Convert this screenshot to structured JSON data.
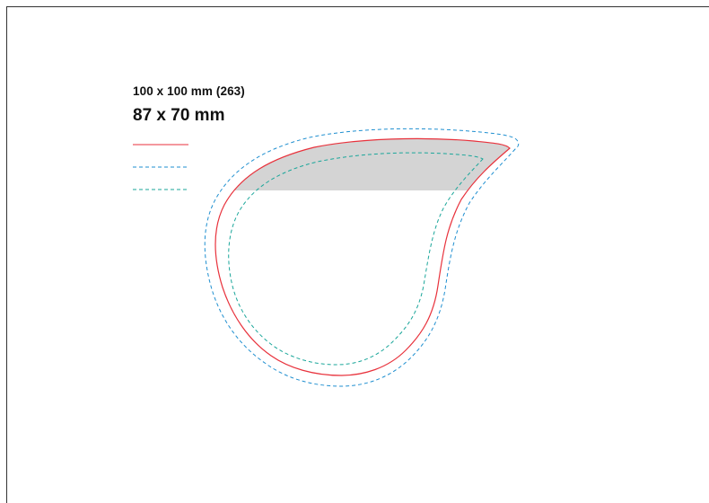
{
  "sheet": {
    "size_label": "100 x 100 mm (263)"
  },
  "shape": {
    "size_label": "87 x 70 mm",
    "type": "teardrop"
  },
  "legend": {
    "items": [
      {
        "line_style": "solid",
        "color": "#e8323c"
      },
      {
        "line_style": "dashed",
        "color": "#1f8fd0"
      },
      {
        "line_style": "dashed",
        "color": "#1aa69a"
      }
    ]
  },
  "colors": {
    "frame": "#333333",
    "cut_line": "#e8323c",
    "outer_bleed": "#1f8fd0",
    "inner_safe": "#1aa69a",
    "highlight_fill": "#d4d4d4"
  }
}
